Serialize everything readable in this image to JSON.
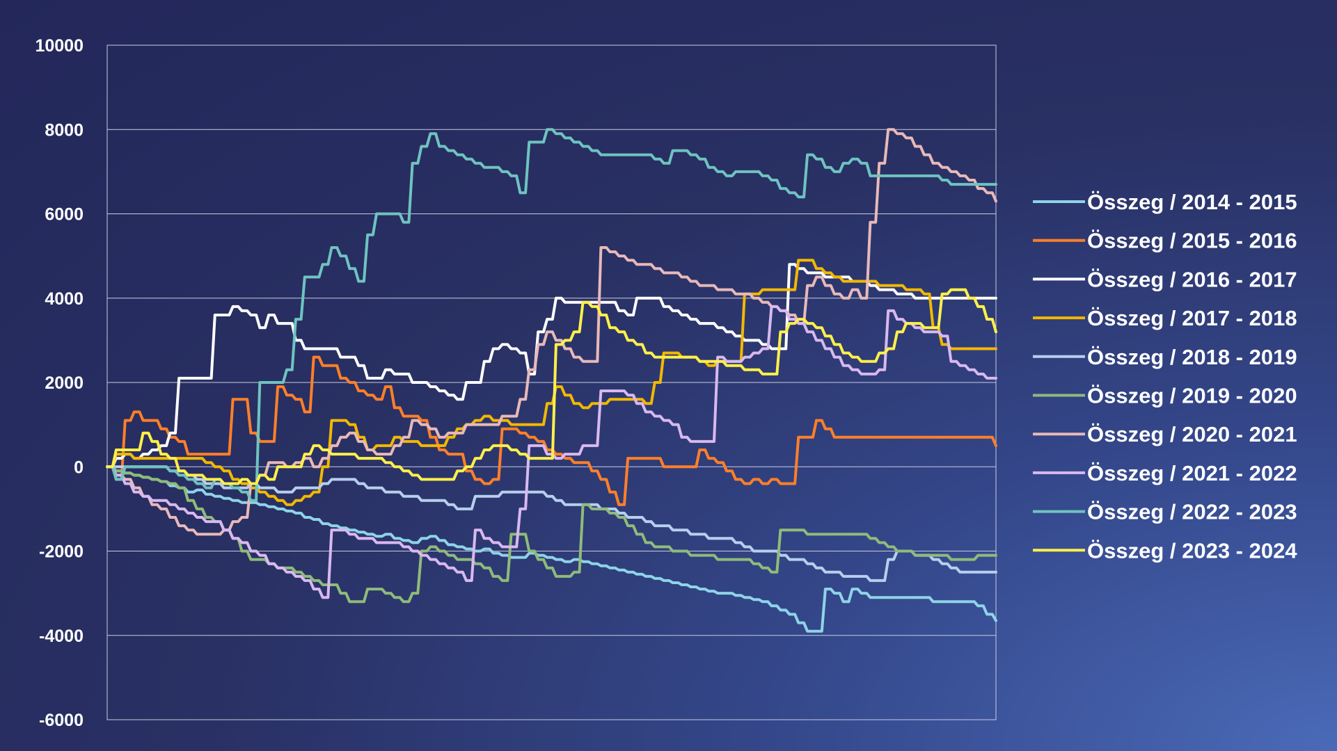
{
  "chart_data": {
    "type": "line",
    "title": "",
    "xlabel": "",
    "ylabel": "",
    "ylim": [
      -6000,
      10000
    ],
    "yticks": [
      10000,
      8000,
      6000,
      4000,
      2000,
      0,
      -2000,
      -4000,
      -6000
    ],
    "ytick_labels": [
      "10000",
      "8000",
      "6000",
      "4000",
      "2000",
      "0",
      "-2000",
      "-4000",
      "-6000"
    ],
    "grid": "horizontal",
    "legend_position": "right",
    "x_points": 100,
    "series": [
      {
        "name": "Összeg / 2014 - 2015",
        "color": "#8fd3e8",
        "values": [
          0,
          -100,
          -150,
          -200,
          -250,
          -300,
          -350,
          -450,
          -500,
          -600,
          -550,
          -650,
          -700,
          -750,
          -800,
          -850,
          -850,
          -900,
          -950,
          -1000,
          -1050,
          -1100,
          -1200,
          -1250,
          -1350,
          -1400,
          -1450,
          -1500,
          -1550,
          -1600,
          -1650,
          -1600,
          -1700,
          -1750,
          -1800,
          -1700,
          -1650,
          -1750,
          -1850,
          -1900,
          -1950,
          -2000,
          -1950,
          -2050,
          -2100,
          -2150,
          -2150,
          -2050,
          -2100,
          -2150,
          -2200,
          -2250,
          -2200,
          -2250,
          -2300,
          -2350,
          -2400,
          -2450,
          -2500,
          -2550,
          -2600,
          -2650,
          -2700,
          -2750,
          -2800,
          -2850,
          -2900,
          -2950,
          -3000,
          -3000,
          -3050,
          -3100,
          -3150,
          -3200,
          -3300,
          -3400,
          -3500,
          -3700,
          -3900,
          -3900,
          -2900,
          -3000,
          -3200,
          -2900,
          -3000,
          -3100,
          -3100,
          -3100,
          -3100,
          -3100,
          -3100,
          -3100,
          -3200,
          -3200,
          -3200,
          -3200,
          -3200,
          -3300,
          -3500,
          -3650
        ]
      },
      {
        "name": "Összeg / 2015 - 2016",
        "color": "#ff7f2a",
        "values": [
          0,
          -300,
          1100,
          1300,
          1100,
          1100,
          900,
          700,
          600,
          300,
          300,
          300,
          300,
          300,
          1600,
          1600,
          800,
          600,
          600,
          1900,
          1700,
          1600,
          1300,
          2600,
          2400,
          2400,
          2100,
          2000,
          1800,
          1700,
          1600,
          1900,
          1400,
          1200,
          1200,
          1100,
          700,
          400,
          300,
          300,
          -100,
          -300,
          -400,
          -300,
          900,
          900,
          800,
          700,
          600,
          400,
          300,
          200,
          100,
          100,
          -100,
          -300,
          -600,
          -900,
          200,
          200,
          200,
          200,
          0,
          0,
          0,
          0,
          400,
          200,
          100,
          -100,
          -300,
          -400,
          -300,
          -400,
          -300,
          -400,
          -400,
          700,
          700,
          1100,
          900,
          700,
          700,
          700,
          700,
          700,
          700,
          700,
          700,
          700,
          700,
          700,
          700,
          700,
          700,
          700,
          700,
          700,
          700,
          500
        ]
      },
      {
        "name": "Összeg / 2016 - 2017",
        "color": "#ffffff",
        "values": [
          0,
          200,
          300,
          200,
          300,
          400,
          500,
          800,
          2100,
          2100,
          2100,
          2100,
          3600,
          3600,
          3800,
          3700,
          3600,
          3300,
          3600,
          3400,
          3400,
          3000,
          2800,
          2800,
          2800,
          2800,
          2600,
          2600,
          2400,
          2100,
          2100,
          2300,
          2200,
          2200,
          2000,
          2000,
          1900,
          1800,
          1700,
          1600,
          2000,
          2000,
          2500,
          2800,
          2900,
          2800,
          2700,
          2200,
          3200,
          3500,
          4000,
          3900,
          3900,
          3900,
          3900,
          3900,
          3900,
          3700,
          3600,
          4000,
          4000,
          4000,
          3800,
          3700,
          3600,
          3500,
          3400,
          3400,
          3300,
          3200,
          3100,
          3000,
          3000,
          2900,
          2800,
          2800,
          4800,
          4700,
          4600,
          4600,
          4500,
          4500,
          4500,
          4400,
          4400,
          4300,
          4200,
          4200,
          4100,
          4100,
          4000,
          4000,
          4000,
          4000,
          4000,
          4000,
          4000,
          4000,
          4000,
          4000
        ]
      },
      {
        "name": "Összeg / 2017 - 2018",
        "color": "#f2b800",
        "values": [
          0,
          300,
          300,
          200,
          200,
          200,
          200,
          200,
          200,
          200,
          200,
          100,
          0,
          -100,
          -300,
          -400,
          -500,
          -600,
          -700,
          -800,
          -900,
          -800,
          -700,
          -600,
          0,
          1100,
          1100,
          1000,
          700,
          400,
          500,
          500,
          700,
          600,
          600,
          500,
          500,
          500,
          700,
          900,
          1000,
          1100,
          1200,
          1100,
          1100,
          1000,
          1000,
          1000,
          1000,
          1500,
          1900,
          1700,
          1500,
          1400,
          1500,
          1500,
          1600,
          1600,
          1600,
          1600,
          1500,
          2000,
          2700,
          2700,
          2600,
          2600,
          2500,
          2400,
          2500,
          2500,
          2500,
          4100,
          4100,
          4200,
          4200,
          4200,
          4200,
          4900,
          4900,
          4700,
          4600,
          4500,
          4400,
          4400,
          4400,
          4400,
          4300,
          4300,
          4300,
          4200,
          4200,
          4100,
          3300,
          2900,
          2800,
          2800,
          2800,
          2800,
          2800,
          2800
        ]
      },
      {
        "name": "Összeg / 2018 - 2019",
        "color": "#b7cfee",
        "values": [
          0,
          0,
          0,
          0,
          0,
          0,
          0,
          -100,
          -100,
          -200,
          -300,
          -400,
          -400,
          -500,
          -500,
          -500,
          -400,
          -500,
          -500,
          -600,
          -600,
          -500,
          -500,
          -500,
          -400,
          -300,
          -300,
          -300,
          -400,
          -500,
          -500,
          -600,
          -600,
          -700,
          -700,
          -800,
          -800,
          -800,
          -900,
          -1000,
          -1000,
          -700,
          -700,
          -700,
          -600,
          -600,
          -600,
          -600,
          -600,
          -700,
          -800,
          -900,
          -900,
          -900,
          -900,
          -1000,
          -1000,
          -1100,
          -1200,
          -1200,
          -1300,
          -1400,
          -1400,
          -1500,
          -1500,
          -1600,
          -1600,
          -1700,
          -1700,
          -1700,
          -1800,
          -1900,
          -2000,
          -2000,
          -2000,
          -2100,
          -2200,
          -2200,
          -2300,
          -2400,
          -2500,
          -2500,
          -2600,
          -2600,
          -2600,
          -2700,
          -2700,
          -2200,
          -2000,
          -2000,
          -2100,
          -2100,
          -2200,
          -2300,
          -2400,
          -2500,
          -2500,
          -2500,
          -2500,
          -2500
        ]
      },
      {
        "name": "Összeg / 2019 - 2020",
        "color": "#8fbb7a",
        "values": [
          0,
          -100,
          -150,
          -200,
          -250,
          -300,
          -350,
          -400,
          -500,
          -800,
          -1000,
          -1200,
          -1300,
          -1500,
          -1700,
          -2000,
          -2200,
          -2200,
          -2300,
          -2400,
          -2400,
          -2500,
          -2600,
          -2700,
          -2800,
          -2800,
          -3000,
          -3200,
          -3200,
          -2900,
          -2900,
          -3000,
          -3100,
          -3200,
          -3000,
          -2000,
          -1900,
          -2000,
          -2100,
          -2200,
          -2200,
          -2300,
          -2400,
          -2600,
          -2700,
          -1600,
          -1600,
          -2000,
          -2200,
          -2400,
          -2600,
          -2600,
          -2500,
          -900,
          -1000,
          -1000,
          -1100,
          -1200,
          -1400,
          -1600,
          -1800,
          -1900,
          -1900,
          -2000,
          -2000,
          -2100,
          -2100,
          -2100,
          -2200,
          -2200,
          -2200,
          -2200,
          -2300,
          -2400,
          -2500,
          -1500,
          -1500,
          -1500,
          -1600,
          -1600,
          -1600,
          -1600,
          -1600,
          -1600,
          -1600,
          -1700,
          -1800,
          -1900,
          -2000,
          -2000,
          -2100,
          -2100,
          -2100,
          -2100,
          -2200,
          -2200,
          -2200,
          -2100,
          -2100,
          -2100
        ]
      },
      {
        "name": "Összeg / 2020 - 2021",
        "color": "#e8b9b9",
        "values": [
          0,
          -200,
          -300,
          -500,
          -700,
          -900,
          -1000,
          -1200,
          -1400,
          -1500,
          -1600,
          -1600,
          -1600,
          -1500,
          -1300,
          -1200,
          -400,
          -200,
          100,
          100,
          0,
          100,
          200,
          0,
          200,
          500,
          700,
          800,
          600,
          400,
          300,
          300,
          500,
          700,
          1100,
          1000,
          900,
          700,
          800,
          800,
          1000,
          1000,
          1000,
          1000,
          1200,
          1200,
          1600,
          2300,
          2900,
          3200,
          3000,
          2800,
          2600,
          2500,
          2500,
          5200,
          5100,
          5000,
          4900,
          4800,
          4800,
          4700,
          4600,
          4600,
          4500,
          4400,
          4300,
          4300,
          4200,
          4200,
          4100,
          4100,
          4000,
          3900,
          3800,
          3700,
          3600,
          3400,
          4300,
          4500,
          4300,
          4100,
          4000,
          4200,
          4000,
          5800,
          7200,
          8000,
          7900,
          7800,
          7600,
          7400,
          7200,
          7100,
          7000,
          6900,
          6800,
          6600,
          6500,
          6300
        ]
      },
      {
        "name": "Összeg / 2021 - 2022",
        "color": "#d9b8f0",
        "values": [
          0,
          -200,
          -400,
          -600,
          -700,
          -800,
          -800,
          -900,
          -1000,
          -1100,
          -1200,
          -1300,
          -1300,
          -1500,
          -1700,
          -1800,
          -2000,
          -2100,
          -2300,
          -2400,
          -2500,
          -2600,
          -2700,
          -2900,
          -3100,
          -1500,
          -1500,
          -1600,
          -1700,
          -1700,
          -1800,
          -1800,
          -1800,
          -1900,
          -2000,
          -2100,
          -2200,
          -2300,
          -2400,
          -2500,
          -2700,
          -1500,
          -1700,
          -1800,
          -1900,
          -1900,
          -1000,
          500,
          500,
          300,
          200,
          300,
          300,
          500,
          500,
          1800,
          1800,
          1800,
          1700,
          1500,
          1300,
          1200,
          1100,
          1000,
          700,
          600,
          600,
          600,
          2600,
          2500,
          2500,
          2600,
          2700,
          2800,
          3800,
          3700,
          3500,
          3400,
          3200,
          3000,
          2800,
          2600,
          2400,
          2300,
          2200,
          2200,
          2300,
          3700,
          3500,
          3400,
          3300,
          3200,
          3200,
          3100,
          2500,
          2400,
          2300,
          2200,
          2100,
          2100
        ]
      },
      {
        "name": "Összeg / 2022 - 2023",
        "color": "#6fc3c0",
        "values": [
          0,
          -300,
          0,
          0,
          0,
          0,
          0,
          -100,
          -200,
          -300,
          -400,
          -500,
          -300,
          -400,
          -500,
          -600,
          -800,
          2000,
          2000,
          2000,
          2300,
          3500,
          4500,
          4500,
          4800,
          5200,
          5000,
          4700,
          4400,
          5500,
          6000,
          6000,
          6000,
          5800,
          7200,
          7600,
          7900,
          7600,
          7500,
          7400,
          7300,
          7200,
          7100,
          7100,
          7000,
          6900,
          6500,
          7700,
          7700,
          8000,
          7900,
          7800,
          7700,
          7600,
          7500,
          7400,
          7400,
          7400,
          7400,
          7400,
          7400,
          7300,
          7200,
          7500,
          7500,
          7400,
          7300,
          7100,
          7000,
          6900,
          7000,
          7000,
          7000,
          6900,
          6800,
          6600,
          6500,
          6400,
          7400,
          7300,
          7100,
          7000,
          7200,
          7300,
          7200,
          6900,
          6900,
          6900,
          6900,
          6900,
          6900,
          6900,
          6900,
          6800,
          6700,
          6700,
          6700,
          6700,
          6700,
          6700
        ]
      },
      {
        "name": "Összeg / 2023 - 2024",
        "color": "#fff04a",
        "values": [
          0,
          400,
          400,
          400,
          800,
          600,
          300,
          200,
          -100,
          -200,
          -200,
          -300,
          -300,
          -400,
          -400,
          -300,
          -400,
          -200,
          -300,
          0,
          0,
          0,
          300,
          500,
          400,
          300,
          300,
          300,
          200,
          200,
          200,
          100,
          0,
          -100,
          -200,
          -300,
          -300,
          -300,
          -300,
          -100,
          0,
          200,
          400,
          500,
          500,
          400,
          300,
          200,
          200,
          200,
          2900,
          3000,
          3200,
          3900,
          3800,
          3600,
          3300,
          3200,
          3000,
          2900,
          2700,
          2600,
          2600,
          2600,
          2600,
          2600,
          2500,
          2500,
          2500,
          2400,
          2400,
          2300,
          2300,
          2200,
          2200,
          3200,
          3400,
          3500,
          3400,
          3300,
          3100,
          2900,
          2700,
          2600,
          2500,
          2500,
          2700,
          2800,
          3200,
          3400,
          3400,
          3300,
          3300,
          4100,
          4200,
          4200,
          4000,
          3800,
          3500,
          3200
        ]
      }
    ]
  }
}
